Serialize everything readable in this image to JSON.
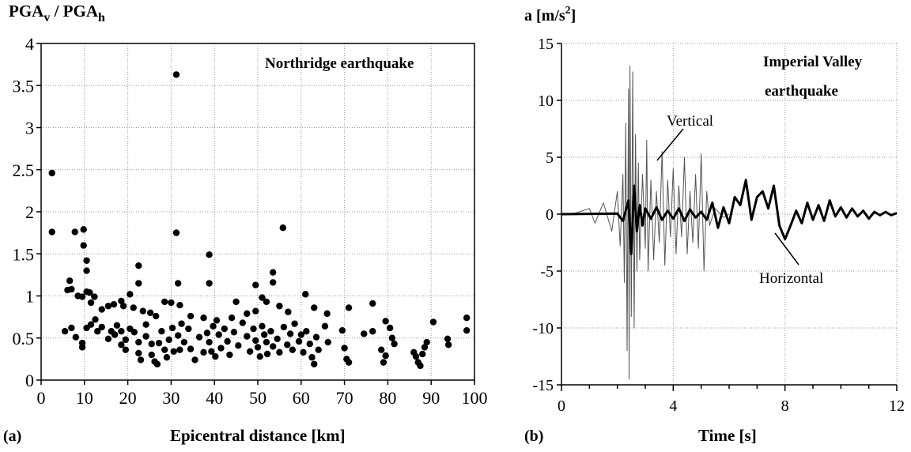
{
  "figure": {
    "panel_a_label": "(a)",
    "panel_b_label": "(b)"
  },
  "chart_data": [
    {
      "type": "scatter",
      "title": "Northridge earthquake",
      "ylabel_main": "PGA",
      "ylabel_sub_v": "v",
      "ylabel_mid": " / PGA",
      "ylabel_sub_h": "h",
      "xlabel": "Epicentral distance [km]",
      "xlim": [
        0,
        100
      ],
      "ylim": [
        0,
        4
      ],
      "xticks": [
        0,
        10,
        20,
        30,
        40,
        50,
        60,
        70,
        80,
        90,
        100
      ],
      "yticks": [
        0,
        0.5,
        1,
        1.5,
        2,
        2.5,
        3,
        3.5,
        4
      ],
      "ytick_labels": [
        "0",
        "0.5",
        "1",
        "1.5",
        "2",
        "2.5",
        "3",
        "3.5",
        "4"
      ],
      "grid": true,
      "points": [
        [
          2.5,
          2.46
        ],
        [
          2.5,
          1.76
        ],
        [
          31.2,
          3.63
        ],
        [
          31.2,
          1.75
        ],
        [
          38.8,
          1.49
        ],
        [
          55.8,
          1.81
        ],
        [
          7.8,
          1.76
        ],
        [
          9.8,
          1.79
        ],
        [
          9.8,
          1.6
        ],
        [
          10.5,
          1.42
        ],
        [
          10.5,
          1.3
        ],
        [
          22.5,
          1.36
        ],
        [
          22.5,
          1.15
        ],
        [
          38.8,
          1.15
        ],
        [
          31.6,
          1.15
        ],
        [
          53.5,
          1.28
        ],
        [
          53.5,
          1.16
        ],
        [
          49.5,
          1.13
        ],
        [
          6.1,
          1.07
        ],
        [
          6.6,
          1.18
        ],
        [
          7.0,
          1.08
        ],
        [
          8.5,
          1.0
        ],
        [
          9.5,
          0.99
        ],
        [
          10.5,
          1.05
        ],
        [
          11.2,
          1.04
        ],
        [
          11.5,
          0.92
        ],
        [
          12.3,
          0.99
        ],
        [
          14.0,
          0.84
        ],
        [
          15.5,
          0.88
        ],
        [
          16.8,
          0.9
        ],
        [
          18.5,
          0.94
        ],
        [
          19.0,
          0.88
        ],
        [
          20.5,
          1.02
        ],
        [
          21.3,
          0.86
        ],
        [
          23.5,
          0.82
        ],
        [
          25.2,
          0.8
        ],
        [
          26.5,
          0.76
        ],
        [
          28.5,
          0.93
        ],
        [
          30.0,
          0.92
        ],
        [
          32.0,
          0.89
        ],
        [
          34.5,
          0.76
        ],
        [
          37.5,
          0.74
        ],
        [
          40.5,
          0.71
        ],
        [
          44.0,
          0.74
        ],
        [
          45.0,
          0.93
        ],
        [
          47.5,
          0.79
        ],
        [
          49.5,
          0.82
        ],
        [
          51.0,
          0.98
        ],
        [
          52.0,
          0.93
        ],
        [
          55.0,
          0.88
        ],
        [
          57.0,
          0.81
        ],
        [
          61.0,
          1.02
        ],
        [
          63.0,
          0.86
        ],
        [
          66.0,
          0.79
        ],
        [
          71.0,
          0.86
        ],
        [
          76.5,
          0.91
        ],
        [
          79.5,
          0.7
        ],
        [
          5.5,
          0.58
        ],
        [
          7.0,
          0.62
        ],
        [
          8.0,
          0.51
        ],
        [
          9.5,
          0.44
        ],
        [
          9.5,
          0.39
        ],
        [
          10.5,
          0.62
        ],
        [
          11.5,
          0.66
        ],
        [
          12.5,
          0.72
        ],
        [
          13.0,
          0.58
        ],
        [
          14.0,
          0.63
        ],
        [
          15.5,
          0.49
        ],
        [
          16.2,
          0.58
        ],
        [
          17.0,
          0.54
        ],
        [
          17.5,
          0.65
        ],
        [
          18.5,
          0.58
        ],
        [
          18.5,
          0.42
        ],
        [
          19.5,
          0.48
        ],
        [
          19.5,
          0.36
        ],
        [
          20.5,
          0.61
        ],
        [
          21.5,
          0.57
        ],
        [
          22.5,
          0.45
        ],
        [
          22.5,
          0.32
        ],
        [
          23.0,
          0.24
        ],
        [
          24.2,
          0.66
        ],
        [
          24.2,
          0.52
        ],
        [
          25.5,
          0.43
        ],
        [
          25.5,
          0.3
        ],
        [
          26.2,
          0.22
        ],
        [
          26.8,
          0.19
        ],
        [
          27.2,
          0.44
        ],
        [
          27.8,
          0.58
        ],
        [
          28.5,
          0.36
        ],
        [
          29.0,
          0.27
        ],
        [
          29.5,
          0.48
        ],
        [
          30.3,
          0.62
        ],
        [
          30.6,
          0.34
        ],
        [
          31.6,
          0.53
        ],
        [
          32.0,
          0.36
        ],
        [
          32.4,
          0.67
        ],
        [
          33.0,
          0.45
        ],
        [
          34.0,
          0.61
        ],
        [
          34.5,
          0.37
        ],
        [
          35.5,
          0.24
        ],
        [
          36.5,
          0.51
        ],
        [
          37.5,
          0.33
        ],
        [
          38.3,
          0.56
        ],
        [
          38.8,
          0.45
        ],
        [
          39.3,
          0.34
        ],
        [
          39.7,
          0.64
        ],
        [
          40.2,
          0.28
        ],
        [
          41.0,
          0.54
        ],
        [
          41.5,
          0.38
        ],
        [
          42.3,
          0.61
        ],
        [
          43.0,
          0.46
        ],
        [
          43.5,
          0.3
        ],
        [
          44.5,
          0.57
        ],
        [
          45.5,
          0.41
        ],
        [
          46.5,
          0.68
        ],
        [
          47.5,
          0.52
        ],
        [
          48.2,
          0.34
        ],
        [
          49.0,
          0.61
        ],
        [
          49.5,
          0.47
        ],
        [
          50.0,
          0.39
        ],
        [
          50.5,
          0.28
        ],
        [
          51.0,
          0.64
        ],
        [
          51.5,
          0.54
        ],
        [
          52.0,
          0.45
        ],
        [
          52.2,
          0.31
        ],
        [
          53.0,
          0.58
        ],
        [
          53.5,
          0.4
        ],
        [
          54.5,
          0.49
        ],
        [
          55.0,
          0.33
        ],
        [
          56.0,
          0.63
        ],
        [
          56.8,
          0.42
        ],
        [
          57.5,
          0.55
        ],
        [
          58.0,
          0.36
        ],
        [
          58.5,
          0.67
        ],
        [
          59.5,
          0.46
        ],
        [
          60.0,
          0.54
        ],
        [
          60.5,
          0.33
        ],
        [
          61.2,
          0.58
        ],
        [
          62.0,
          0.43
        ],
        [
          62.5,
          0.27
        ],
        [
          63.0,
          0.19
        ],
        [
          63.5,
          0.51
        ],
        [
          64.0,
          0.36
        ],
        [
          65.5,
          0.64
        ],
        [
          66.2,
          0.45
        ],
        [
          69.5,
          0.59
        ],
        [
          70.0,
          0.38
        ],
        [
          70.5,
          0.25
        ],
        [
          71.0,
          0.21
        ],
        [
          74.5,
          0.55
        ],
        [
          76.5,
          0.58
        ],
        [
          78.5,
          0.36
        ],
        [
          79.0,
          0.21
        ],
        [
          79.5,
          0.29
        ],
        [
          80.5,
          0.62
        ],
        [
          81.0,
          0.5
        ],
        [
          81.5,
          0.43
        ],
        [
          86.0,
          0.33
        ],
        [
          86.5,
          0.28
        ],
        [
          87.0,
          0.21
        ],
        [
          87.5,
          0.17
        ],
        [
          88.0,
          0.31
        ],
        [
          88.5,
          0.39
        ],
        [
          89.0,
          0.45
        ],
        [
          90.5,
          0.69
        ],
        [
          93.8,
          0.49
        ],
        [
          94.0,
          0.42
        ],
        [
          98.2,
          0.74
        ],
        [
          98.2,
          0.59
        ]
      ]
    },
    {
      "type": "line",
      "title_line1": "Imperial Valley",
      "title_line2": "earthquake",
      "ylabel": "a [m/s²]",
      "ylabel_base": "a [m/s",
      "ylabel_sup": "2",
      "ylabel_close": "]",
      "xlabel": "Time [s]",
      "xlim": [
        0,
        12
      ],
      "ylim": [
        -15,
        15
      ],
      "xticks": [
        0,
        4,
        8,
        12
      ],
      "yticks": [
        15,
        10,
        5,
        0,
        -5,
        -10,
        -15
      ],
      "grid": true,
      "annotations": [
        {
          "text": "Vertical"
        },
        {
          "text": "Horizontal"
        }
      ],
      "series": [
        {
          "name": "Vertical",
          "style": "thin",
          "t": [
            0,
            0.5,
            1.0,
            1.2,
            1.5,
            1.8,
            2.0,
            2.1,
            2.2,
            2.25,
            2.3,
            2.35,
            2.4,
            2.42,
            2.45,
            2.5,
            2.55,
            2.6,
            2.65,
            2.7,
            2.75,
            2.8,
            2.9,
            3.0,
            3.05,
            3.1,
            3.2,
            3.3,
            3.4,
            3.5,
            3.6,
            3.7,
            3.8,
            3.9,
            4.0,
            4.1,
            4.2,
            4.3,
            4.4,
            4.5,
            4.6,
            4.7,
            4.8,
            4.9,
            5.0,
            5.1,
            5.2,
            5.3,
            5.5,
            5.8,
            6.0
          ],
          "a": [
            0,
            0.1,
            0.5,
            -0.8,
            1.0,
            -1.5,
            2.0,
            -2.8,
            3.5,
            -6.0,
            8.0,
            -12.0,
            11.0,
            -14.5,
            13.0,
            -9.0,
            12.5,
            -10.0,
            7.0,
            -5.0,
            4.5,
            -4.0,
            3.5,
            -3.0,
            6.5,
            -5.0,
            3.0,
            -4.0,
            2.0,
            -2.5,
            5.5,
            -4.5,
            3.0,
            -2.0,
            4.0,
            -3.5,
            2.5,
            -2.0,
            5.0,
            -3.5,
            2.0,
            -2.5,
            3.5,
            -3.0,
            5.3,
            -5.0,
            2.0,
            -1.0,
            0.5,
            -0.3,
            0
          ]
        },
        {
          "name": "Horizontal",
          "style": "thick",
          "t": [
            0,
            2.0,
            2.2,
            2.4,
            2.5,
            2.6,
            2.7,
            2.8,
            2.9,
            3.0,
            3.2,
            3.4,
            3.6,
            3.8,
            4.0,
            4.2,
            4.4,
            4.6,
            4.8,
            5.0,
            5.2,
            5.4,
            5.6,
            5.8,
            6.0,
            6.2,
            6.4,
            6.6,
            6.8,
            7.0,
            7.2,
            7.4,
            7.6,
            7.8,
            8.0,
            8.2,
            8.4,
            8.6,
            8.8,
            9.0,
            9.2,
            9.4,
            9.6,
            9.8,
            10.0,
            10.2,
            10.4,
            10.6,
            10.8,
            11.0,
            11.2,
            11.4,
            11.6,
            11.8,
            12.0
          ],
          "a": [
            0,
            0.05,
            -0.6,
            1.2,
            -3.5,
            2.5,
            -1.5,
            0.8,
            -1.0,
            0.5,
            -0.4,
            0.6,
            -0.5,
            0.3,
            -0.4,
            0.5,
            -0.6,
            0.4,
            -0.3,
            0.2,
            -0.5,
            1.0,
            -1.2,
            0.6,
            -0.8,
            1.5,
            0.8,
            3.0,
            -0.5,
            1.5,
            2.0,
            0.5,
            2.5,
            -1.0,
            -2.2,
            -1.0,
            0.3,
            -0.8,
            1.0,
            -0.5,
            0.8,
            -0.6,
            1.2,
            -0.2,
            0.6,
            -0.3,
            0.5,
            -0.2,
            0.3,
            -0.4,
            0.2,
            -0.1,
            0.2,
            -0.1,
            0.1
          ]
        }
      ]
    }
  ]
}
